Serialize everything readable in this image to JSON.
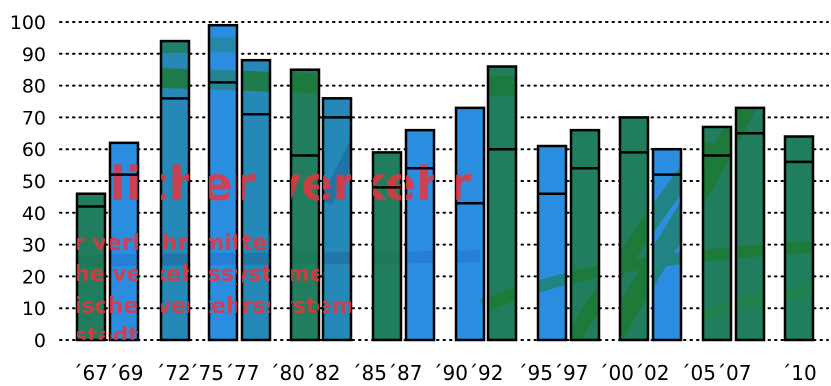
{
  "chart_data": {
    "type": "bar",
    "title": "",
    "xlabel": "",
    "ylabel": "",
    "ylim": [
      0,
      100
    ],
    "yticks": [
      0,
      10,
      20,
      30,
      40,
      50,
      60,
      70,
      80,
      90,
      100
    ],
    "grid": "dotted horizontal",
    "legend": "none",
    "category_labels": [
      "´67´69",
      "´72",
      "´75´77",
      "´80´82",
      "´85´87",
      "´90´92",
      "´95´97",
      "´00´02",
      "´05´07",
      "´10"
    ],
    "bars": [
      {
        "year": "67",
        "value": 46,
        "marker": 42,
        "fill": "green"
      },
      {
        "year": "69",
        "value": 62,
        "marker": 52,
        "fill": "blue"
      },
      {
        "year": "72",
        "value": 94,
        "marker": 76,
        "fill": "mixed"
      },
      {
        "year": "75",
        "value": 99,
        "marker": 81,
        "fill": "blue"
      },
      {
        "year": "77",
        "value": 88,
        "marker": 71,
        "fill": "mixed"
      },
      {
        "year": "80",
        "value": 85,
        "marker": 58,
        "fill": "green"
      },
      {
        "year": "82",
        "value": 76,
        "marker": 70,
        "fill": "mixed"
      },
      {
        "year": "85",
        "value": 59,
        "marker": 48,
        "fill": "green"
      },
      {
        "year": "87",
        "value": 66,
        "marker": 54,
        "fill": "blue"
      },
      {
        "year": "90",
        "value": 73,
        "marker": 43,
        "fill": "blue"
      },
      {
        "year": "92",
        "value": 86,
        "marker": 60,
        "fill": "green"
      },
      {
        "year": "95",
        "value": 61,
        "marker": 46,
        "fill": "blue"
      },
      {
        "year": "97",
        "value": 66,
        "marker": 54,
        "fill": "green"
      },
      {
        "year": "00",
        "value": 70,
        "marker": 59,
        "fill": "green"
      },
      {
        "year": "02",
        "value": 60,
        "marker": 52,
        "fill": "blue"
      },
      {
        "year": "05",
        "value": 67,
        "marker": 58,
        "fill": "green"
      },
      {
        "year": "07",
        "value": 73,
        "marker": 65,
        "fill": "green"
      },
      {
        "year": "10",
        "value": 64,
        "marker": 56,
        "fill": "green"
      }
    ]
  },
  "overlay_text": [
    "licher verkehr",
    "r verkehrsmittel",
    "he verkehrssysteme",
    "ischer verkehrssysteme",
    "stadt"
  ],
  "colors": {
    "blue": "#2a8de0",
    "green": "#1d7a3a",
    "marker": "#000000",
    "grid": "#000000",
    "overlay": "#e8343c"
  }
}
